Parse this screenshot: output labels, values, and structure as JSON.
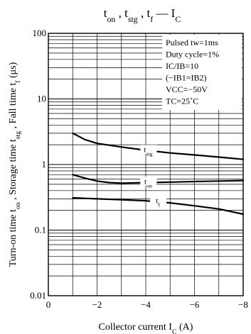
{
  "chart_data": {
    "type": "line",
    "title_parts": [
      "t",
      "on",
      " , t",
      "stg",
      " , t",
      "f",
      " — I",
      "C"
    ],
    "xlabel_main": "Collector current  I",
    "xlabel_sub": "C",
    "xlabel_unit": " (A)",
    "ylabel_parts": [
      "Turn-on time t",
      "on",
      " , Storage time t",
      "stg",
      " , Fall time t",
      "f",
      "  (μs)"
    ],
    "x_scale": "linear",
    "y_scale": "log",
    "xlim": [
      0,
      -8
    ],
    "ylim": [
      0.01,
      100
    ],
    "x_ticks": [
      "0",
      "−2",
      "−4",
      "−6",
      "−8"
    ],
    "y_ticks": [
      "100",
      "10",
      "1",
      "0.1",
      "0.01"
    ],
    "grid": true,
    "conditions": [
      "Pulsed tw=1ms",
      "Duty cycle=1%",
      "IC/IB=10",
      "(−IB1=IB2)",
      "VCC=−50V",
      "TC=25˚C"
    ],
    "conditions_position": "top-right",
    "series": [
      {
        "name": "tstg",
        "label_main": "t",
        "label_sub": "stg",
        "x": [
          -1,
          -1.5,
          -2,
          -3,
          -4,
          -5,
          -6,
          -7,
          -8
        ],
        "y": [
          3.0,
          2.4,
          2.1,
          1.85,
          1.65,
          1.5,
          1.4,
          1.3,
          1.2
        ]
      },
      {
        "name": "ton",
        "label_main": "t",
        "label_sub": "on",
        "x": [
          -1,
          -1.5,
          -2,
          -2.5,
          -3,
          -4,
          -5,
          -6,
          -7,
          -8
        ],
        "y": [
          0.7,
          0.62,
          0.56,
          0.53,
          0.52,
          0.53,
          0.54,
          0.55,
          0.56,
          0.57
        ]
      },
      {
        "name": "tf",
        "label_main": "t",
        "label_sub": "f",
        "x": [
          -1,
          -2,
          -3,
          -4,
          -5,
          -6,
          -7,
          -8
        ],
        "y": [
          0.31,
          0.3,
          0.29,
          0.28,
          0.26,
          0.235,
          0.21,
          0.175
        ]
      }
    ]
  }
}
